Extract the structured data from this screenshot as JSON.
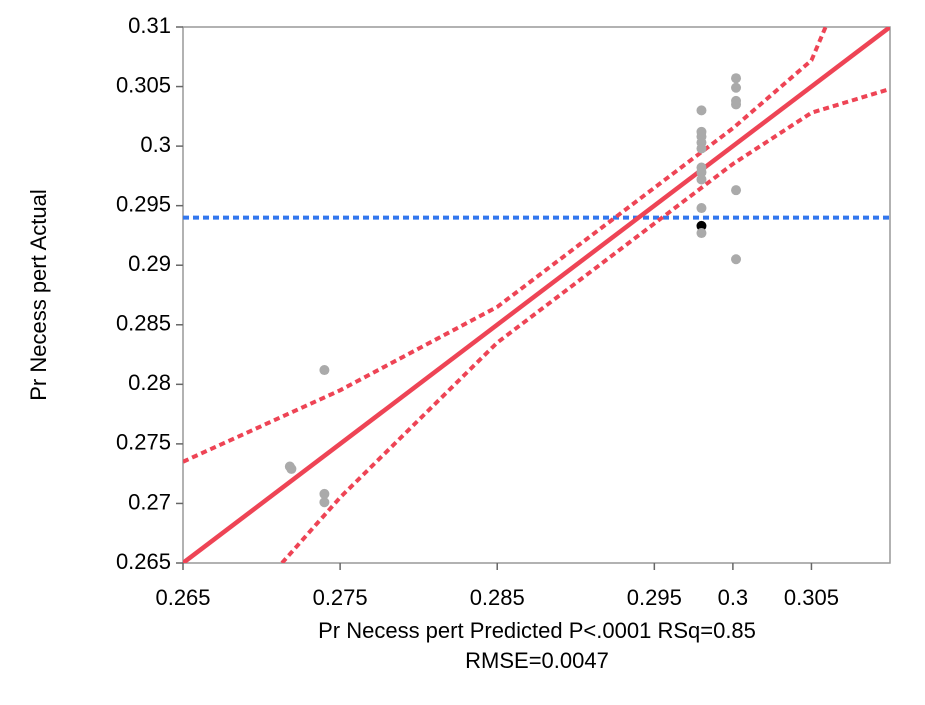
{
  "chart_data": {
    "type": "scatter",
    "xlabel": "Pr Necess pert Predicted P<.0001 RSq=0.85",
    "xlabel2": "RMSE=0.0047",
    "ylabel": "Pr Necess pert Actual",
    "xlim": [
      0.265,
      0.31
    ],
    "ylim": [
      0.265,
      0.31
    ],
    "xticks": [
      0.265,
      0.275,
      0.285,
      0.295,
      0.3,
      0.305
    ],
    "yticks": [
      0.265,
      0.27,
      0.275,
      0.28,
      0.285,
      0.29,
      0.295,
      0.3,
      0.305,
      0.31
    ],
    "points": {
      "x": [
        0.2718,
        0.2719,
        0.274,
        0.274,
        0.274,
        0.298,
        0.298,
        0.298,
        0.298,
        0.298,
        0.298,
        0.298,
        0.298,
        0.298,
        0.298,
        0.298,
        0.3002,
        0.3002,
        0.3002,
        0.3002,
        0.3002,
        0.3002
      ],
      "y": [
        0.2731,
        0.2729,
        0.2812,
        0.2708,
        0.2701,
        0.303,
        0.3012,
        0.3008,
        0.3003,
        0.2998,
        0.2982,
        0.2978,
        0.2972,
        0.2948,
        0.2933,
        0.2927,
        0.3057,
        0.3049,
        0.3038,
        0.3035,
        0.2963,
        0.2905
      ],
      "colors": [
        "#aaaaaa",
        "#aaaaaa",
        "#aaaaaa",
        "#aaaaaa",
        "#aaaaaa",
        "#aaaaaa",
        "#aaaaaa",
        "#aaaaaa",
        "#aaaaaa",
        "#aaaaaa",
        "#aaaaaa",
        "#aaaaaa",
        "#aaaaaa",
        "#aaaaaa",
        "#000000",
        "#aaaaaa",
        "#aaaaaa",
        "#aaaaaa",
        "#aaaaaa",
        "#aaaaaa",
        "#aaaaaa",
        "#aaaaaa"
      ]
    },
    "fit": {
      "x": [
        0.265,
        0.31
      ],
      "y": [
        0.265,
        0.31
      ],
      "color": "#ee4455"
    },
    "upper_ci": {
      "x": [
        0.265,
        0.275,
        0.285,
        0.29,
        0.295,
        0.3,
        0.305,
        0.3059
      ],
      "y": [
        0.2735,
        0.2795,
        0.2865,
        0.2915,
        0.2965,
        0.3015,
        0.3072,
        0.31
      ],
      "color": "#ee4455"
    },
    "lower_ci": {
      "x": [
        0.2713,
        0.275,
        0.285,
        0.29,
        0.295,
        0.3,
        0.305,
        0.31
      ],
      "y": [
        0.265,
        0.2705,
        0.2835,
        0.2885,
        0.2935,
        0.2985,
        0.3028,
        0.3048
      ],
      "color": "#ee4455"
    },
    "mean": {
      "value": 0.294,
      "color": "#3377ee"
    }
  }
}
